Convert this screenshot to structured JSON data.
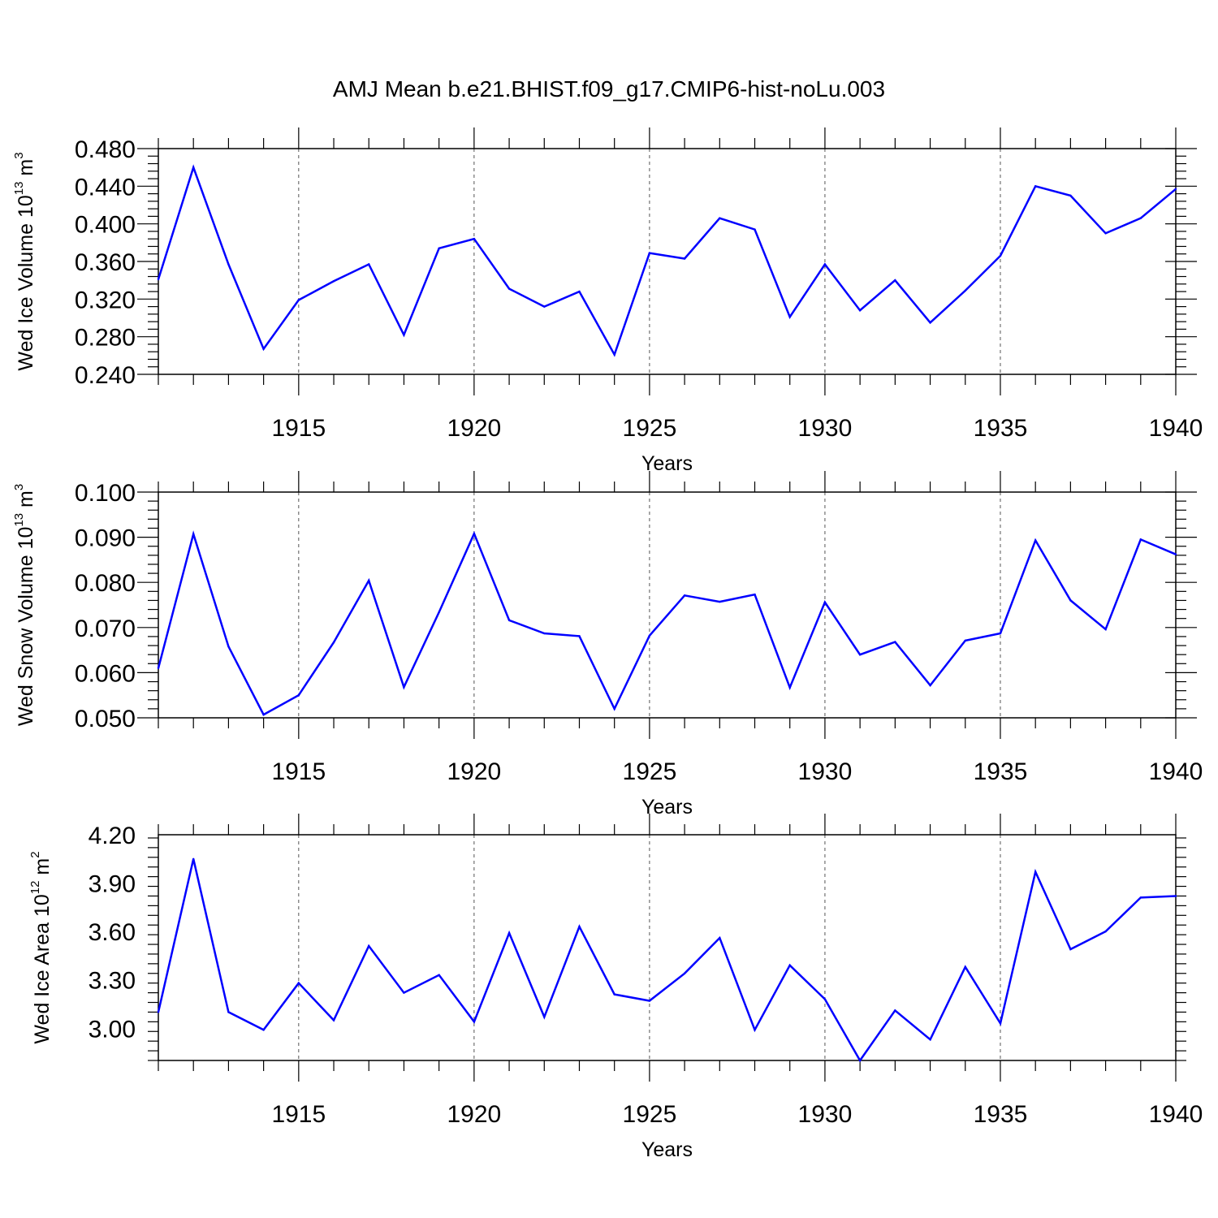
{
  "title": "AMJ Mean b.e21.BHIST.f09_g17.CMIP6-hist-noLu.003",
  "colors": {
    "line": "#0000ff",
    "axis": "#000000",
    "grid": "#555555"
  },
  "chart_data": [
    {
      "type": "line",
      "ylabel": {
        "main": "Wed Ice Volume 10",
        "sup": "13",
        "unit": " m",
        "unit_sup": "3"
      },
      "xlabel": "Years",
      "xlim": [
        1911,
        1940
      ],
      "ylim": [
        0.24,
        0.48
      ],
      "yticks": [
        0.24,
        0.28,
        0.32,
        0.36,
        0.4,
        0.44,
        0.48
      ],
      "ytick_labels": [
        "0.240",
        "0.280",
        "0.320",
        "0.360",
        "0.400",
        "0.440",
        "0.480"
      ],
      "xticks": [
        1915,
        1920,
        1925,
        1930,
        1935,
        1940
      ],
      "xtick_labels": [
        "1915",
        "1920",
        "1925",
        "1930",
        "1935",
        "1940"
      ],
      "grid": "vertical dashed at major x ticks",
      "x": [
        1911,
        1912,
        1913,
        1914,
        1915,
        1916,
        1917,
        1918,
        1919,
        1920,
        1921,
        1922,
        1923,
        1924,
        1925,
        1926,
        1927,
        1928,
        1929,
        1930,
        1931,
        1932,
        1933,
        1934,
        1935,
        1936,
        1937,
        1938,
        1939,
        1940
      ],
      "values": [
        0.341,
        0.46,
        0.357,
        0.267,
        0.319,
        0.339,
        0.357,
        0.282,
        0.374,
        0.384,
        0.331,
        0.312,
        0.328,
        0.261,
        0.369,
        0.363,
        0.406,
        0.394,
        0.301,
        0.357,
        0.308,
        0.34,
        0.295,
        0.329,
        0.366,
        0.44,
        0.43,
        0.39,
        0.406,
        0.437
      ]
    },
    {
      "type": "line",
      "ylabel": {
        "main": "Wed Snow Volume 10",
        "sup": "13",
        "unit": " m",
        "unit_sup": "3"
      },
      "xlabel": "Years",
      "xlim": [
        1911,
        1940
      ],
      "ylim": [
        0.05,
        0.1
      ],
      "yticks": [
        0.05,
        0.06,
        0.07,
        0.08,
        0.09,
        0.1
      ],
      "ytick_labels": [
        "0.050",
        "0.060",
        "0.070",
        "0.080",
        "0.090",
        "0.100"
      ],
      "xticks": [
        1915,
        1920,
        1925,
        1930,
        1935,
        1940
      ],
      "xtick_labels": [
        "1915",
        "1920",
        "1925",
        "1930",
        "1935",
        "1940"
      ],
      "grid": "vertical dashed at major x ticks",
      "x": [
        1911,
        1912,
        1913,
        1914,
        1915,
        1916,
        1917,
        1918,
        1919,
        1920,
        1921,
        1922,
        1923,
        1924,
        1925,
        1926,
        1927,
        1928,
        1929,
        1930,
        1931,
        1932,
        1933,
        1934,
        1935,
        1936,
        1937,
        1938,
        1939,
        1940
      ],
      "values": [
        0.061,
        0.0907,
        0.0658,
        0.0507,
        0.055,
        0.0667,
        0.0804,
        0.0568,
        0.0734,
        0.0908,
        0.0716,
        0.0687,
        0.0681,
        0.052,
        0.0682,
        0.0771,
        0.0757,
        0.0773,
        0.0567,
        0.0756,
        0.064,
        0.0668,
        0.0572,
        0.0671,
        0.0687,
        0.0893,
        0.076,
        0.0696,
        0.0895,
        0.0862
      ]
    },
    {
      "type": "line",
      "ylabel": {
        "main": "Wed Ice Area 10",
        "sup": "12",
        "unit": " m",
        "unit_sup": "2"
      },
      "xlabel": "Years",
      "xlim": [
        1911,
        1940
      ],
      "ylim": [
        2.8,
        4.2
      ],
      "yticks": [
        3.0,
        3.3,
        3.6,
        3.9,
        4.2
      ],
      "ytick_labels": [
        "3.00",
        "3.30",
        "3.60",
        "3.90",
        "4.20"
      ],
      "xticks": [
        1915,
        1920,
        1925,
        1930,
        1935,
        1940
      ],
      "xtick_labels": [
        "1915",
        "1920",
        "1925",
        "1930",
        "1935",
        "1940"
      ],
      "grid": "vertical dashed at major x ticks",
      "x": [
        1911,
        1912,
        1913,
        1914,
        1915,
        1916,
        1917,
        1918,
        1919,
        1920,
        1921,
        1922,
        1923,
        1924,
        1925,
        1926,
        1927,
        1928,
        1929,
        1930,
        1931,
        1932,
        1933,
        1934,
        1935,
        1936,
        1937,
        1938,
        1939,
        1940
      ],
      "values": [
        3.1,
        4.05,
        3.1,
        2.99,
        3.28,
        3.05,
        3.51,
        3.22,
        3.33,
        3.04,
        3.59,
        3.07,
        3.63,
        3.21,
        3.17,
        3.34,
        3.56,
        2.99,
        3.39,
        3.18,
        2.8,
        3.11,
        2.93,
        3.38,
        3.03,
        3.97,
        3.49,
        3.6,
        3.81,
        3.82
      ]
    }
  ]
}
